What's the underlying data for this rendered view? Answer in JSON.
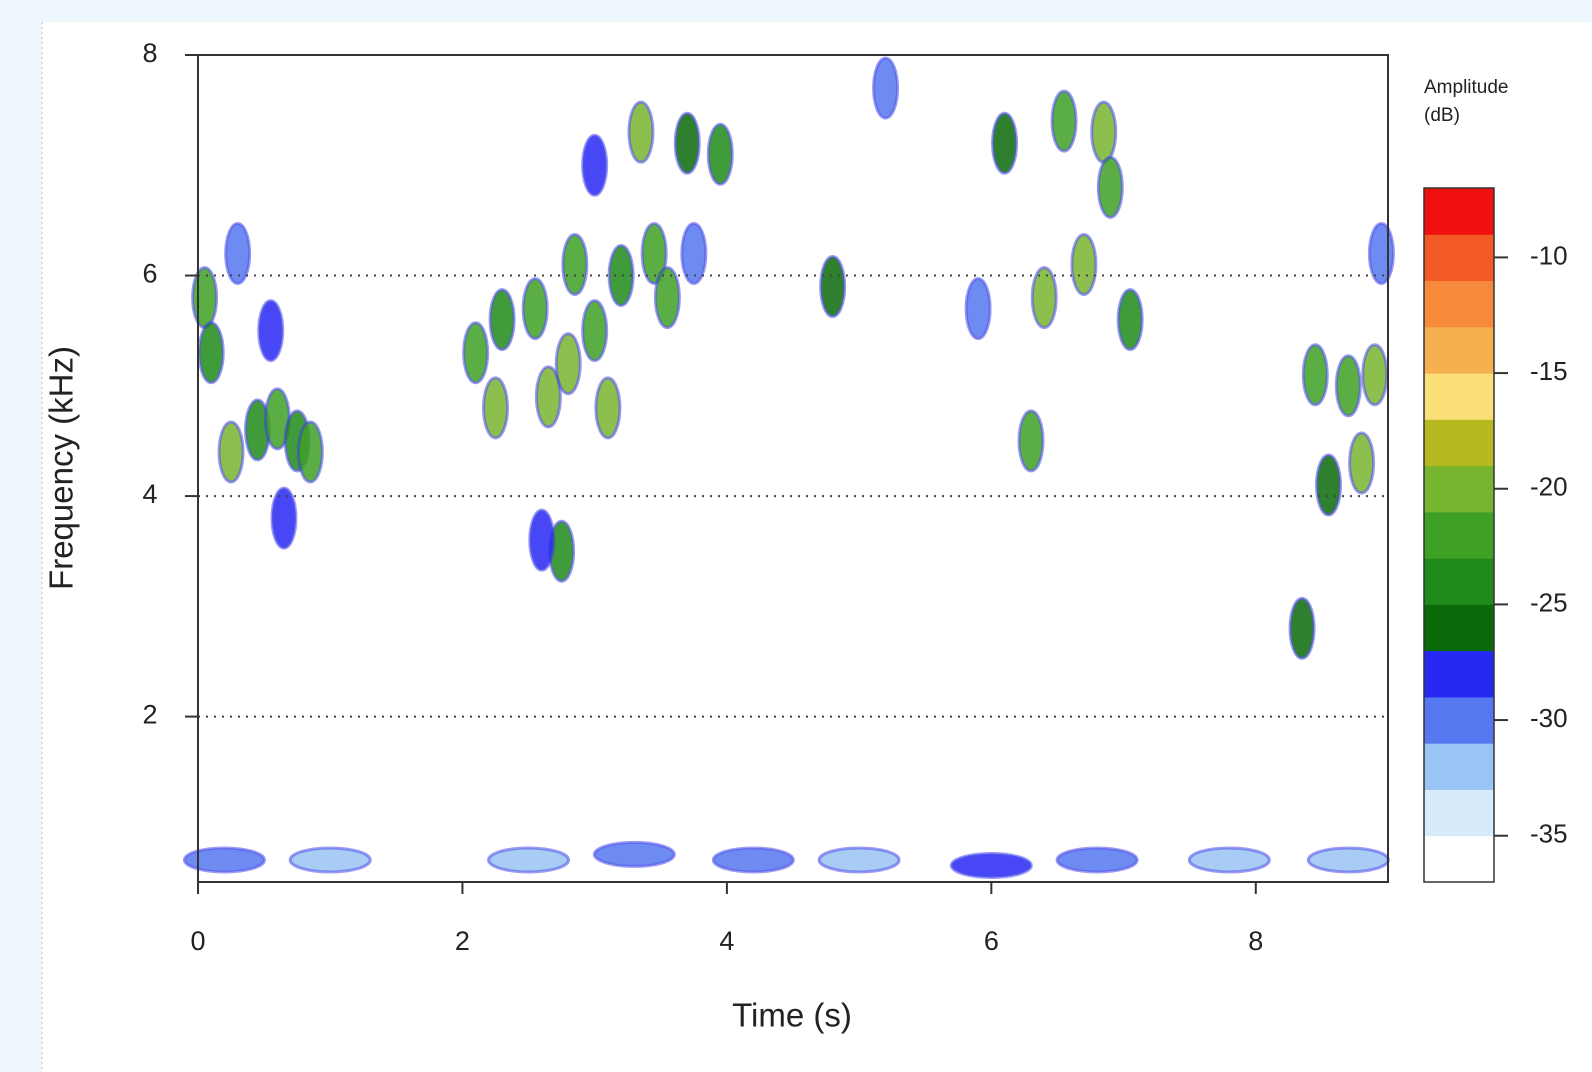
{
  "chart_data": {
    "type": "spectrogram",
    "xlabel": "Time (s)",
    "ylabel": "Frequency (kHz)",
    "colorbar_title": [
      "Amplitude",
      "(dB)"
    ],
    "xlim": [
      0,
      9
    ],
    "xticks": [
      0,
      2,
      4,
      6,
      8
    ],
    "ylim": [
      0.5,
      8
    ],
    "yticks": [
      2,
      4,
      6,
      8
    ],
    "grid": true,
    "zlim": [
      -37,
      -7
    ],
    "zticks": [
      -10,
      -15,
      -20,
      -25,
      -30,
      -35
    ],
    "colors": [
      "#ffffff",
      "#d6ecfa",
      "#99c4f3",
      "#5577f0",
      "#2828f5",
      "#0a6a0a",
      "#1f8a1a",
      "#3ea024",
      "#78b52e",
      "#b8b820",
      "#fbe07a",
      "#f7b050",
      "#f78a3a",
      "#f45a25",
      "#f01010"
    ],
    "x": [
      0.05,
      0.1,
      0.25,
      0.45,
      0.55,
      0.6,
      0.75,
      0.85,
      0.65,
      0.3,
      2.1,
      2.25,
      2.3,
      2.55,
      2.65,
      2.8,
      2.85,
      3.0,
      3.1,
      3.2,
      3.35,
      3.45,
      3.55,
      2.75,
      2.6,
      3.0,
      3.7,
      3.95,
      3.75,
      4.8,
      5.2,
      5.9,
      6.3,
      6.4,
      6.55,
      6.7,
      6.85,
      6.9,
      6.1,
      7.05,
      8.35,
      8.45,
      8.7,
      8.8,
      8.9,
      8.95,
      8.55,
      0.2,
      1.0,
      2.5,
      3.3,
      4.2,
      5.0,
      6.0,
      6.8,
      7.8,
      8.7
    ],
    "y": [
      5.8,
      5.3,
      4.4,
      4.6,
      5.5,
      4.7,
      4.5,
      4.4,
      3.8,
      6.2,
      5.3,
      4.8,
      5.6,
      5.7,
      4.9,
      5.2,
      6.1,
      5.5,
      4.8,
      6.0,
      7.3,
      6.2,
      5.8,
      3.5,
      3.6,
      7.0,
      7.2,
      7.1,
      6.2,
      5.9,
      7.7,
      5.7,
      4.5,
      5.8,
      7.4,
      6.1,
      7.3,
      6.8,
      7.2,
      5.6,
      2.8,
      5.1,
      5.0,
      4.3,
      5.1,
      6.2,
      4.1,
      0.7,
      0.7,
      0.7,
      0.75,
      0.7,
      0.7,
      0.65,
      0.7,
      0.7,
      0.7
    ],
    "z": [
      -22,
      -24,
      -21,
      -25,
      -28,
      -22,
      -24,
      -22,
      -29,
      -30,
      -22,
      -20,
      -25,
      -22,
      -21,
      -20,
      -22,
      -22,
      -20,
      -24,
      -20,
      -22,
      -23,
      -24,
      -28,
      -28,
      -27,
      -24,
      -30,
      -27,
      -31,
      -30,
      -23,
      -21,
      -22,
      -21,
      -21,
      -22,
      -27,
      -25,
      -27,
      -22,
      -22,
      -21,
      -20,
      -30,
      -26,
      -30,
      -32,
      -33,
      -31,
      -31,
      -33,
      -29,
      -31,
      -33,
      -32
    ]
  }
}
